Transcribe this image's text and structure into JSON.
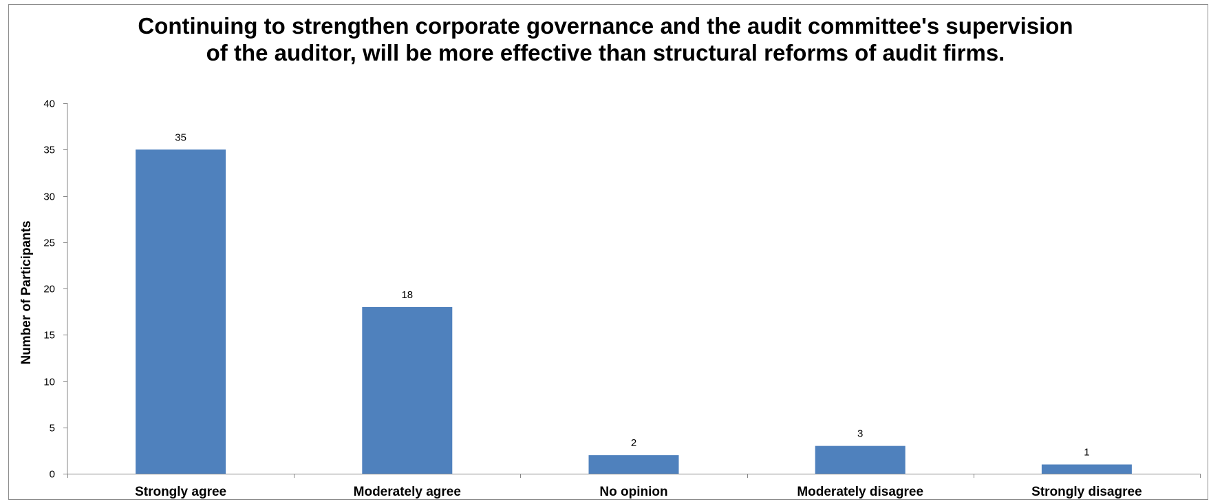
{
  "chart_data": {
    "type": "bar",
    "title_lines": [
      "Continuing to strengthen corporate governance and the audit committee's supervision",
      "of the auditor, will be more effective than structural reforms of audit firms."
    ],
    "xlabel": "",
    "ylabel": "Number of Participants",
    "categories": [
      "Strongly agree",
      "Moderately agree",
      "No opinion",
      "Moderately disagree",
      "Strongly disagree"
    ],
    "values": [
      35,
      18,
      2,
      3,
      1
    ],
    "data_labels": [
      "35",
      "18",
      "2",
      "3",
      "1"
    ],
    "ylim": [
      0,
      40
    ],
    "yticks": [
      "0",
      "5",
      "10",
      "15",
      "20",
      "25",
      "30",
      "35",
      "40"
    ],
    "grid": false,
    "legend": "none",
    "bar_color": "#4f81bd",
    "axis_color": "#868686"
  }
}
